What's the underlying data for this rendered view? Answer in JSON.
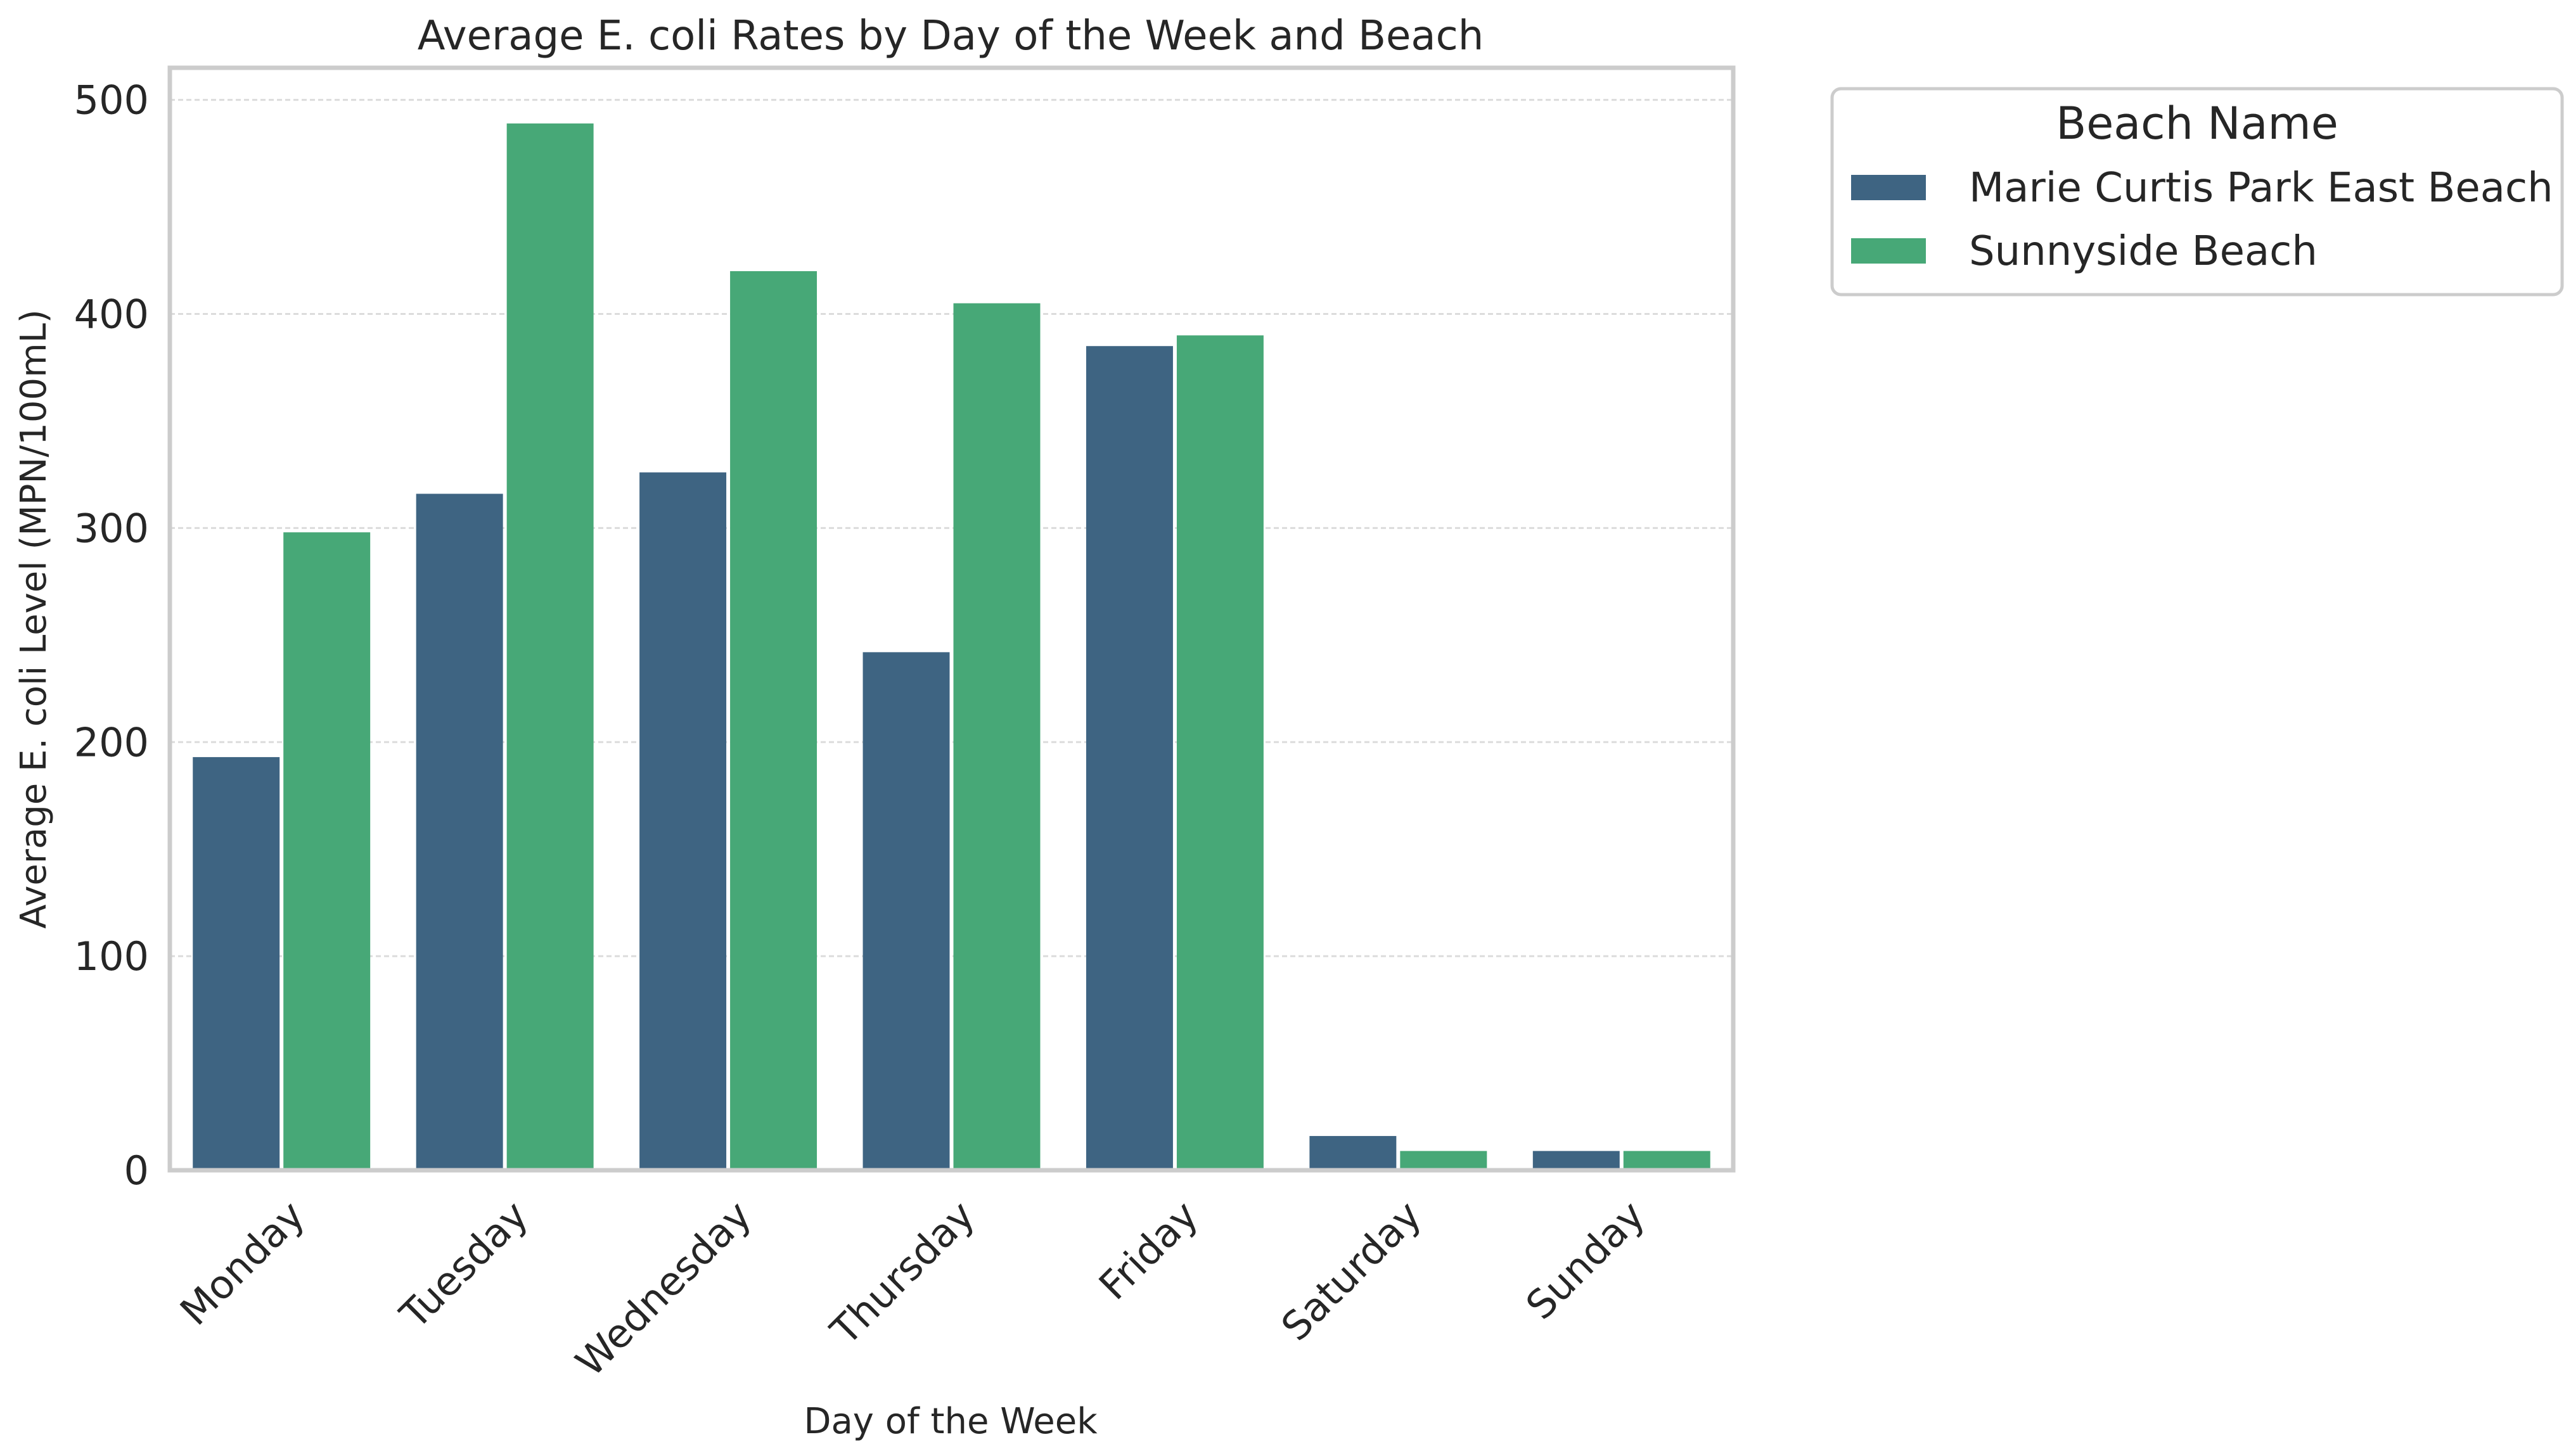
{
  "colors": {
    "marie": "#3e6482",
    "sunnyside": "#47a877",
    "grid": "#dcdcdc",
    "frame": "#cccccc"
  },
  "chart_data": {
    "type": "bar",
    "title": "Average E. coli Rates by Day of the Week and Beach",
    "xlabel": "Day of the Week",
    "ylabel": "Average E. coli Level (MPN/100mL)",
    "categories": [
      "Monday",
      "Tuesday",
      "Wednesday",
      "Thursday",
      "Friday",
      "Saturday",
      "Sunday"
    ],
    "yticks": [
      "0",
      "100",
      "200",
      "300",
      "400",
      "500"
    ],
    "ylim": [
      0,
      515
    ],
    "grid": true,
    "legend": {
      "title": "Beach Name",
      "position": "outside-top-right"
    },
    "series": [
      {
        "name": "Marie Curtis Park East Beach",
        "values": [
          193,
          316,
          326,
          242,
          385,
          16,
          9
        ]
      },
      {
        "name": "Sunnyside Beach",
        "values": [
          298,
          489,
          420,
          405,
          390,
          9,
          9
        ]
      }
    ]
  }
}
